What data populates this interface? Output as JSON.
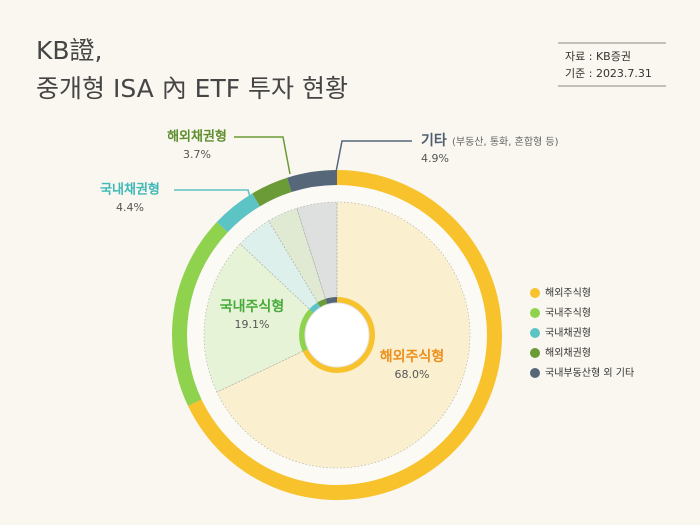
{
  "chart_data": {
    "type": "donut",
    "title": [
      "KB證,",
      "중개형 ISA 內 ETF 투자 현황"
    ],
    "source": [
      "자료 : KB증권",
      "기준 : 2023.7.31"
    ],
    "categories": [
      "해외주식형",
      "국내주식형",
      "국내채권형",
      "해외채권형",
      "국내부동산형 외 기타"
    ],
    "callout_labels": [
      "해외주식형",
      "국내주식형",
      "국내채권형",
      "해외채권형",
      "기타"
    ],
    "other_note": "(부동산, 통화, 혼합형 등)",
    "values": [
      68.0,
      19.1,
      4.4,
      3.7,
      4.9
    ],
    "value_labels": [
      "68.0%",
      "19.1%",
      "4.4%",
      "3.7%",
      "4.9%"
    ],
    "colors": [
      "#f8c22c",
      "#8ed24e",
      "#5cc4c4",
      "#6b9b37",
      "#56677a"
    ],
    "label_colors": [
      "#ee8f1c",
      "#47ab3b",
      "#3fb8b8",
      "#5e8e2e",
      "#4e5e70"
    ],
    "legend": "right"
  }
}
